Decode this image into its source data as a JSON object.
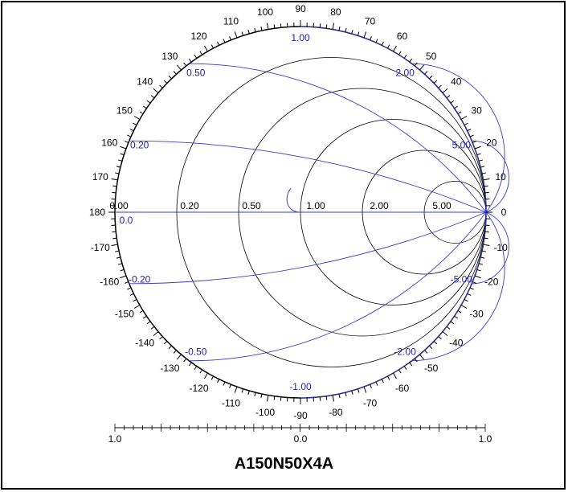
{
  "chart_data": {
    "type": "smith-chart",
    "title": "A150N50X4A",
    "colors": {
      "grid": "#000000",
      "reactance": "#3a3acc",
      "label_blue": "#2020c0",
      "label_black": "#000000"
    },
    "resistance_labels": [
      "0.00",
      "0.20",
      "0.50",
      "1.00",
      "2.00",
      "5.00"
    ],
    "zero_label": "0.0",
    "reactance_labels": [
      {
        "x": 0.2,
        "text": "0.20"
      },
      {
        "x": 0.5,
        "text": "0.50"
      },
      {
        "x": 1.0,
        "text": "1.00"
      },
      {
        "x": 2.0,
        "text": "2.00"
      },
      {
        "x": 5.0,
        "text": "5.00"
      },
      {
        "x": -0.2,
        "text": "-0.20"
      },
      {
        "x": -0.5,
        "text": "-0.50"
      },
      {
        "x": -1.0,
        "text": "-1.00"
      },
      {
        "x": -2.0,
        "text": "-2.00"
      },
      {
        "x": -5.0,
        "text": "-5.00"
      }
    ],
    "angle_labels": [
      "0",
      "10",
      "20",
      "30",
      "40",
      "50",
      "60",
      "70",
      "80",
      "90",
      "100",
      "110",
      "120",
      "130",
      "140",
      "150",
      "160",
      "170",
      "180",
      "-10",
      "-20",
      "-30",
      "-40",
      "-50",
      "-60",
      "-70",
      "-80",
      "-90",
      "-100",
      "-110",
      "-120",
      "-130",
      "-140",
      "-150",
      "-160",
      "-170"
    ],
    "bottom_scale": {
      "left": "1.0",
      "center": "0.0",
      "right": "1.0"
    }
  }
}
